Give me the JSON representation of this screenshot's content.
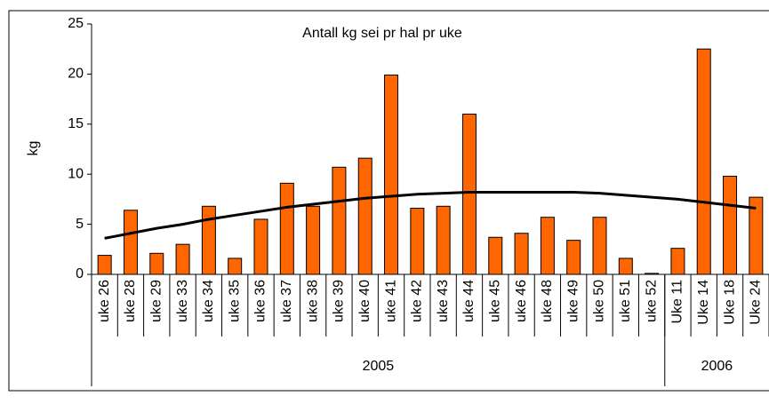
{
  "chart_data": {
    "type": "bar",
    "title": "Antall kg sei pr hal pr uke",
    "y_label": "kg",
    "categories": [
      "uke 26",
      "uke 28",
      "uke 29",
      "uke 33",
      "uke 34",
      "uke 35",
      "uke 36",
      "uke 37",
      "uke 38",
      "uke 39",
      "uke 40",
      "uke 41",
      "uke 42",
      "uke 43",
      "uke 44",
      "uke 45",
      "uke 46",
      "uke 48",
      "uke 49",
      "uke 50",
      "uke 51",
      "uke 52",
      "Uke 11",
      "Uke 14",
      "Uke 18",
      "Uke 24"
    ],
    "groups": [
      {
        "label": "2005",
        "count": 22
      },
      {
        "label": "2006",
        "count": 4
      }
    ],
    "series": [
      {
        "type": "bar",
        "color": "#ff6600",
        "values": [
          1.9,
          6.4,
          2.1,
          3.0,
          6.8,
          1.6,
          5.5,
          9.1,
          6.8,
          10.7,
          11.6,
          19.9,
          6.6,
          6.8,
          16.0,
          3.7,
          4.1,
          5.7,
          3.4,
          5.7,
          1.6,
          0.1,
          2.6,
          22.5,
          9.8,
          7.7
        ]
      },
      {
        "type": "line",
        "color": "#000000",
        "values": [
          3.6,
          4.1,
          4.6,
          5.0,
          5.5,
          5.9,
          6.3,
          6.7,
          7.0,
          7.3,
          7.6,
          7.8,
          8.0,
          8.1,
          8.2,
          8.2,
          8.2,
          8.2,
          8.2,
          8.1,
          7.9,
          7.7,
          7.5,
          7.2,
          6.9,
          6.6
        ]
      }
    ],
    "ylim": [
      0,
      25
    ],
    "yticks": [
      0,
      5,
      10,
      15,
      20,
      25
    ],
    "grid": false
  }
}
